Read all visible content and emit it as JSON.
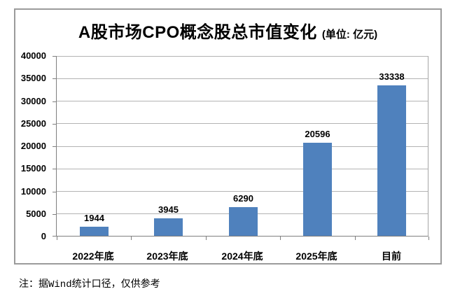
{
  "chart_data": {
    "type": "bar",
    "title": "A股市场CPO概念股总市值变化",
    "unit_label": "(单位: 亿元)",
    "categories": [
      "2022年底",
      "2023年底",
      "2024年底",
      "2025年底",
      "目前"
    ],
    "values": [
      1944,
      3945,
      6290,
      20596,
      33338
    ],
    "value_labels": [
      "1944",
      "3945",
      "6290",
      "20596",
      "33338"
    ],
    "ylim": [
      0,
      40000
    ],
    "yticks": [
      0,
      5000,
      10000,
      15000,
      20000,
      25000,
      30000,
      35000,
      40000
    ],
    "ytick_labels": [
      "0",
      "5000",
      "10000",
      "15000",
      "20000",
      "25000",
      "30000",
      "35000",
      "40000"
    ],
    "grid": "horizontal",
    "legend": "none",
    "xlabel": "",
    "ylabel": ""
  },
  "footnote": "注：据Wind统计口径，仅供参考",
  "colors": {
    "bar": "#4f81bd",
    "gridline": "#b3b3b3",
    "axis": "#7f7f7f",
    "frame_border": "#9b9b9b",
    "text": "#000000",
    "background": "#ffffff"
  }
}
